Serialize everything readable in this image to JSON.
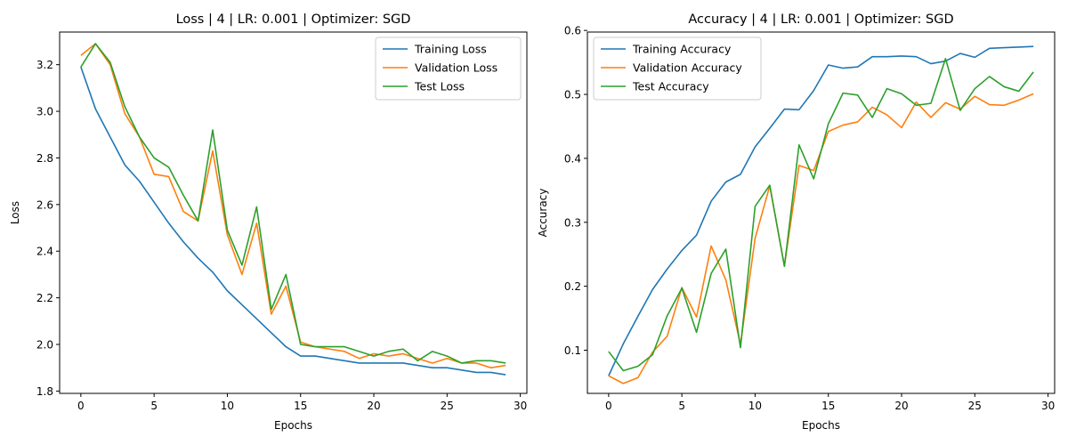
{
  "chart_data": [
    {
      "type": "line",
      "title": "Loss | 4 | LR: 0.001 | Optimizer: SGD",
      "xlabel": "Epochs",
      "ylabel": "Loss",
      "xlim": [
        -1.45,
        30.45
      ],
      "ylim": [
        1.79,
        3.34
      ],
      "xticks": [
        0,
        5,
        10,
        15,
        20,
        25,
        30
      ],
      "yticks": [
        1.8,
        2.0,
        2.2,
        2.4,
        2.6,
        2.8,
        3.0,
        3.2
      ],
      "ytick_decimals": 1,
      "grid": false,
      "legend_position": "top-right",
      "x": [
        0,
        1,
        2,
        3,
        4,
        5,
        6,
        7,
        8,
        9,
        10,
        11,
        12,
        13,
        14,
        15,
        16,
        17,
        18,
        19,
        20,
        21,
        22,
        23,
        24,
        25,
        26,
        27,
        28,
        29
      ],
      "series": [
        {
          "name": "Training Loss",
          "color": "#1f77b4",
          "values": [
            3.19,
            3.01,
            2.89,
            2.77,
            2.7,
            2.61,
            2.52,
            2.44,
            2.37,
            2.31,
            2.23,
            2.17,
            2.11,
            2.05,
            1.99,
            1.95,
            1.95,
            1.94,
            1.93,
            1.92,
            1.92,
            1.92,
            1.92,
            1.91,
            1.9,
            1.9,
            1.89,
            1.88,
            1.88,
            1.87
          ]
        },
        {
          "name": "Validation Loss",
          "color": "#ff7f0e",
          "values": [
            3.24,
            3.29,
            3.2,
            2.99,
            2.89,
            2.73,
            2.72,
            2.57,
            2.53,
            2.83,
            2.47,
            2.3,
            2.52,
            2.13,
            2.25,
            2.01,
            1.99,
            1.98,
            1.97,
            1.94,
            1.96,
            1.95,
            1.96,
            1.94,
            1.92,
            1.94,
            1.92,
            1.92,
            1.9,
            1.91
          ]
        },
        {
          "name": "Test Loss",
          "color": "#2ca02c",
          "values": [
            3.19,
            3.29,
            3.21,
            3.02,
            2.89,
            2.8,
            2.76,
            2.64,
            2.53,
            2.92,
            2.49,
            2.34,
            2.59,
            2.15,
            2.3,
            2.0,
            1.99,
            1.99,
            1.99,
            1.97,
            1.95,
            1.97,
            1.98,
            1.93,
            1.97,
            1.95,
            1.92,
            1.93,
            1.93,
            1.92
          ]
        }
      ]
    },
    {
      "type": "line",
      "title": "Accuracy | 4 | LR: 0.001 | Optimizer: SGD",
      "xlabel": "Epochs",
      "ylabel": "Accuracy",
      "xlim": [
        -1.45,
        30.45
      ],
      "ylim": [
        0.0325,
        0.5975
      ],
      "xticks": [
        0,
        5,
        10,
        15,
        20,
        25,
        30
      ],
      "yticks": [
        0.1,
        0.2,
        0.3,
        0.4,
        0.5,
        0.6
      ],
      "ytick_decimals": 1,
      "grid": false,
      "legend_position": "top-left",
      "x": [
        0,
        1,
        2,
        3,
        4,
        5,
        6,
        7,
        8,
        9,
        10,
        11,
        12,
        13,
        14,
        15,
        16,
        17,
        18,
        19,
        20,
        21,
        22,
        23,
        24,
        25,
        26,
        27,
        28,
        29
      ],
      "series": [
        {
          "name": "Training Accuracy",
          "color": "#1f77b4",
          "values": [
            0.06,
            0.11,
            0.153,
            0.195,
            0.227,
            0.256,
            0.28,
            0.333,
            0.363,
            0.375,
            0.418,
            0.447,
            0.477,
            0.476,
            0.506,
            0.546,
            0.541,
            0.543,
            0.559,
            0.559,
            0.56,
            0.559,
            0.548,
            0.552,
            0.564,
            0.558,
            0.572,
            0.573,
            0.574,
            0.575
          ]
        },
        {
          "name": "Validation Accuracy",
          "color": "#ff7f0e",
          "values": [
            0.06,
            0.048,
            0.057,
            0.097,
            0.122,
            0.198,
            0.152,
            0.263,
            0.21,
            0.109,
            0.275,
            0.357,
            0.232,
            0.389,
            0.381,
            0.442,
            0.452,
            0.457,
            0.48,
            0.468,
            0.448,
            0.488,
            0.464,
            0.487,
            0.477,
            0.497,
            0.484,
            0.483,
            0.491,
            0.501
          ]
        },
        {
          "name": "Test Accuracy",
          "color": "#2ca02c",
          "values": [
            0.098,
            0.068,
            0.075,
            0.093,
            0.154,
            0.197,
            0.128,
            0.22,
            0.258,
            0.104,
            0.325,
            0.358,
            0.231,
            0.421,
            0.368,
            0.454,
            0.502,
            0.499,
            0.464,
            0.509,
            0.501,
            0.483,
            0.486,
            0.556,
            0.475,
            0.509,
            0.528,
            0.512,
            0.505,
            0.535
          ]
        }
      ]
    }
  ]
}
